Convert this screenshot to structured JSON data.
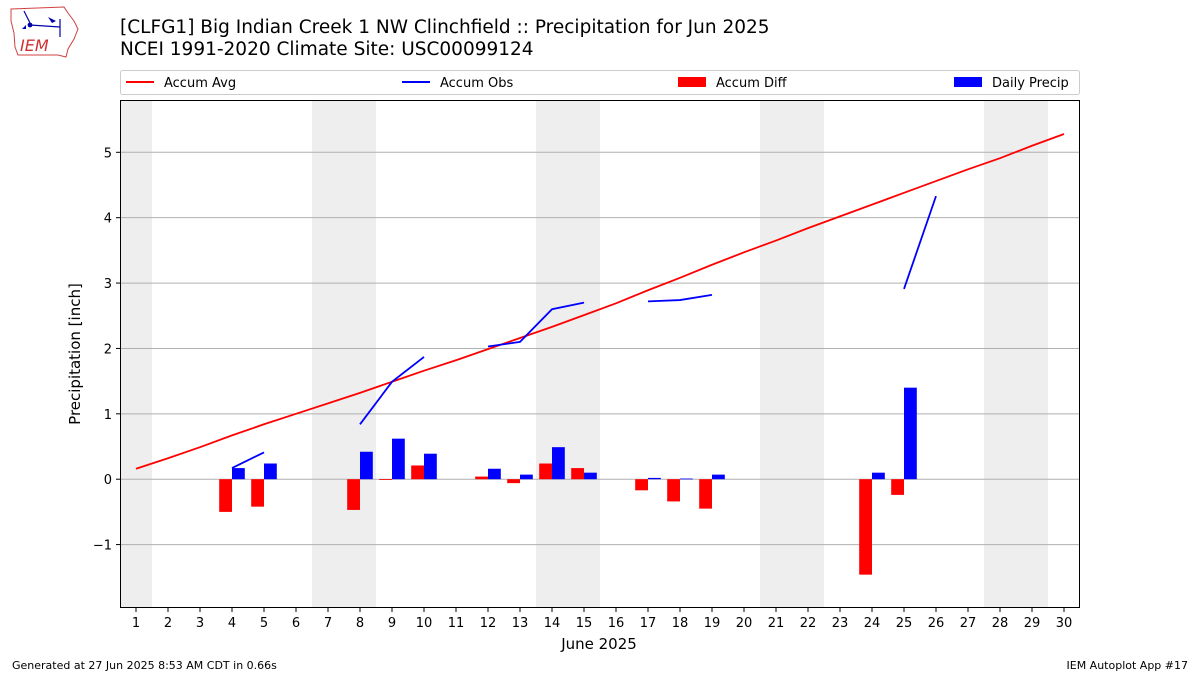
{
  "header": {
    "title_line1": "[CLFG1] Big Indian Creek 1 NW Clinchfield :: Precipitation for Jun 2025",
    "title_line2": "NCEI 1991-2020 Climate Site: USC00099124",
    "logo_text": "IEM"
  },
  "footer": {
    "generated": "Generated at 27 Jun 2025 8:53 AM CDT in 0.66s",
    "app": "IEM Autoplot App #17"
  },
  "colors": {
    "avg": "#ff0000",
    "obs": "#0000ff",
    "diff": "#ff0000",
    "daily": "#0000ff",
    "weekend": "#eeeeee",
    "grid": "#b0b0b0"
  },
  "chart_data": {
    "type": "bar",
    "xlabel": "June 2025",
    "ylabel": "Precipitation [inch]",
    "xlim": [
      0.5,
      30.5
    ],
    "ylim": [
      -1.97,
      5.8
    ],
    "x_ticks": [
      1,
      2,
      3,
      4,
      5,
      6,
      7,
      8,
      9,
      10,
      11,
      12,
      13,
      14,
      15,
      16,
      17,
      18,
      19,
      20,
      21,
      22,
      23,
      24,
      25,
      26,
      27,
      28,
      29,
      30
    ],
    "y_ticks": [
      -1,
      0,
      1,
      2,
      3,
      4,
      5
    ],
    "grid": "y",
    "legend_position": "top",
    "legend": [
      "Accum Avg",
      "Accum Obs",
      "Accum Diff",
      "Daily Precip"
    ],
    "weekend_spans": [
      [
        0.5,
        1.5
      ],
      [
        6.5,
        8.5
      ],
      [
        13.5,
        15.5
      ],
      [
        20.5,
        22.5
      ],
      [
        27.5,
        29.5
      ]
    ],
    "days": [
      1,
      2,
      3,
      4,
      5,
      6,
      7,
      8,
      9,
      10,
      11,
      12,
      13,
      14,
      15,
      16,
      17,
      18,
      19,
      20,
      21,
      22,
      23,
      24,
      25,
      26,
      27,
      28,
      29,
      30
    ],
    "series": [
      {
        "name": "Accum Avg",
        "kind": "line",
        "values": [
          0.16,
          0.32,
          0.49,
          0.67,
          0.84,
          1.0,
          1.16,
          1.32,
          1.49,
          1.66,
          1.82,
          1.99,
          2.16,
          2.33,
          2.51,
          2.69,
          2.89,
          3.08,
          3.28,
          3.47,
          3.65,
          3.84,
          4.02,
          4.2,
          4.38,
          4.56,
          4.74,
          4.91,
          5.1,
          5.28
        ]
      },
      {
        "name": "Accum Obs",
        "kind": "line",
        "values": [
          null,
          null,
          null,
          0.17,
          0.41,
          null,
          null,
          0.84,
          1.49,
          1.87,
          null,
          2.03,
          2.1,
          2.6,
          2.7,
          null,
          2.72,
          2.74,
          2.82,
          null,
          null,
          null,
          null,
          null,
          2.91,
          4.33,
          null,
          null,
          null,
          null
        ]
      },
      {
        "name": "Accum Diff",
        "kind": "bar",
        "values": [
          null,
          null,
          null,
          -0.5,
          -0.42,
          null,
          null,
          -0.47,
          -0.01,
          0.21,
          null,
          0.04,
          -0.06,
          0.24,
          0.17,
          null,
          -0.17,
          -0.34,
          -0.45,
          null,
          null,
          null,
          null,
          -1.46,
          -0.24,
          null,
          null,
          null,
          null,
          null
        ]
      },
      {
        "name": "Daily Precip",
        "kind": "bar",
        "values": [
          null,
          null,
          null,
          0.17,
          0.24,
          null,
          null,
          0.42,
          0.62,
          0.39,
          null,
          0.16,
          0.07,
          0.49,
          0.1,
          null,
          0.02,
          0.01,
          0.07,
          null,
          null,
          null,
          null,
          0.1,
          1.4,
          null,
          null,
          null,
          null,
          null
        ]
      }
    ]
  }
}
